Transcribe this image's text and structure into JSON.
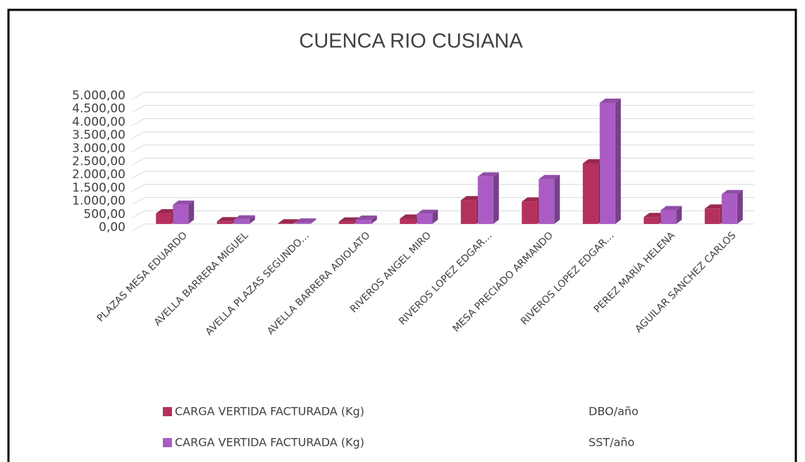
{
  "chart_data": {
    "type": "bar3d",
    "title": "CUENCA RIO CUSIANA",
    "categories": [
      "PLAZAS MESA  EDUARDO",
      "AVELLA BARRERA MIGUEL",
      "AVELLA PLAZAS SEGUNDO…",
      "AVELLA BARRERA ADIOLATO",
      "RIVEROS ANGEL MIRO",
      "RIVEROS LOPEZ EDGAR…",
      "MESA PRECIADO ARMANDO",
      "RIVEROS LOPEZ EDGAR…",
      "PEREZ MARÍA HELENA",
      "AGUILAR SANCHEZ CARLOS"
    ],
    "series": [
      {
        "name": "CARGA VERTIDA FACTURADA (Kg)",
        "unit": "DBO/año",
        "color": "#b5305f",
        "values": [
          400,
          100,
          20,
          90,
          200,
          900,
          850,
          2300,
          260,
          580
        ]
      },
      {
        "name": "CARGA VERTIDA FACTURADA (Kg)",
        "unit": "SST/año",
        "color": "#aa5cc4",
        "values": [
          730,
          170,
          50,
          160,
          380,
          1800,
          1700,
          4600,
          520,
          1130
        ]
      }
    ],
    "ylim": [
      0,
      5000
    ],
    "yticks": [
      {
        "value": 0,
        "label": "0,00"
      },
      {
        "value": 500,
        "label": "500,00"
      },
      {
        "value": 1000,
        "label": "1.000,00"
      },
      {
        "value": 1500,
        "label": "1.500,00"
      },
      {
        "value": 2000,
        "label": "2.000,00"
      },
      {
        "value": 2500,
        "label": "2.500,00"
      },
      {
        "value": 3000,
        "label": "3.000,00"
      },
      {
        "value": 3500,
        "label": "3.500,00"
      },
      {
        "value": 4000,
        "label": "4.000,00"
      },
      {
        "value": 4500,
        "label": "4.500,00"
      },
      {
        "value": 5000,
        "label": "5.000,00"
      }
    ],
    "grid": true,
    "legend": "bottom"
  }
}
